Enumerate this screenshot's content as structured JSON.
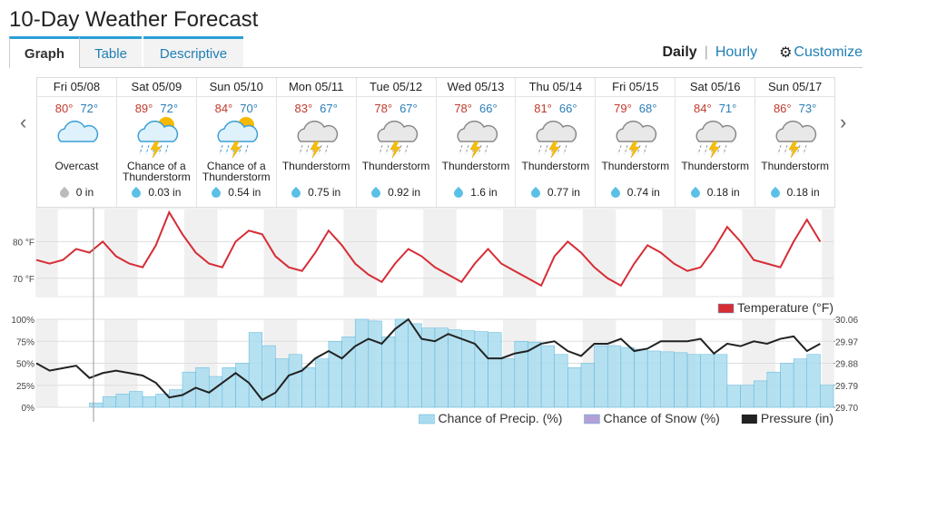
{
  "header": {
    "title": "10-Day Weather Forecast"
  },
  "tabs": [
    "Graph",
    "Table",
    "Descriptive"
  ],
  "views": [
    "Daily",
    "Hourly"
  ],
  "customize": "Customize",
  "days": [
    {
      "date": "Fri 05/08",
      "high": "80°",
      "low": "72°",
      "condition": "Overcast",
      "precip": "0 in"
    },
    {
      "date": "Sat 05/09",
      "high": "89°",
      "low": "72°",
      "condition": "Chance of a Thunderstorm",
      "precip": "0.03 in"
    },
    {
      "date": "Sun 05/10",
      "high": "84°",
      "low": "70°",
      "condition": "Chance of a Thunderstorm",
      "precip": "0.54 in"
    },
    {
      "date": "Mon 05/11",
      "high": "83°",
      "low": "67°",
      "condition": "Thunderstorm",
      "precip": "0.75 in"
    },
    {
      "date": "Tue 05/12",
      "high": "78°",
      "low": "67°",
      "condition": "Thunderstorm",
      "precip": "0.92 in"
    },
    {
      "date": "Wed 05/13",
      "high": "78°",
      "low": "66°",
      "condition": "Thunderstorm",
      "precip": "1.6 in"
    },
    {
      "date": "Thu 05/14",
      "high": "81°",
      "low": "66°",
      "condition": "Thunderstorm",
      "precip": "0.77 in"
    },
    {
      "date": "Fri 05/15",
      "high": "79°",
      "low": "68°",
      "condition": "Thunderstorm",
      "precip": "0.74 in"
    },
    {
      "date": "Sat 05/16",
      "high": "84°",
      "low": "71°",
      "condition": "Thunderstorm",
      "precip": "0.18 in"
    },
    {
      "date": "Sun 05/17",
      "high": "86°",
      "low": "73°",
      "condition": "Thunderstorm",
      "precip": "0.18 in"
    }
  ],
  "chart_data": [
    {
      "type": "line",
      "x": [
        0,
        4,
        8,
        12,
        16,
        20,
        24,
        28,
        32,
        36,
        40,
        44,
        48,
        52,
        56,
        60,
        64,
        68,
        72,
        76,
        80,
        84,
        88,
        92,
        96,
        100,
        104,
        108,
        112,
        116,
        120,
        124,
        128,
        132,
        136,
        140,
        144,
        148,
        152,
        156,
        160,
        164,
        168,
        172,
        176,
        180,
        184,
        188,
        192,
        196,
        200,
        204,
        208,
        212,
        216,
        220,
        224,
        228,
        232,
        236
      ],
      "series": [
        {
          "name": "Temperature (°F)",
          "color": "#d62d35",
          "values": [
            75,
            74,
            75,
            78,
            77,
            80,
            76,
            74,
            73,
            79,
            88,
            82,
            77,
            74,
            73,
            80,
            83,
            82,
            76,
            73,
            72,
            77,
            83,
            79,
            74,
            71,
            69,
            74,
            78,
            76,
            73,
            71,
            69,
            74,
            78,
            74,
            72,
            70,
            68,
            76,
            80,
            77,
            73,
            70,
            68,
            74,
            79,
            77,
            74,
            72,
            73,
            78,
            84,
            80,
            75,
            74,
            73,
            80,
            86,
            80
          ]
        }
      ],
      "xlim": [
        0,
        240
      ],
      "ylim": [
        65,
        89
      ],
      "yticks": [
        {
          "value": 70,
          "label": "70 °F"
        },
        {
          "value": 80,
          "label": "80 °F"
        }
      ],
      "grid": true
    },
    {
      "type": "area",
      "x": [
        0,
        4,
        8,
        12,
        16,
        20,
        24,
        28,
        32,
        36,
        40,
        44,
        48,
        52,
        56,
        60,
        64,
        68,
        72,
        76,
        80,
        84,
        88,
        92,
        96,
        100,
        104,
        108,
        112,
        116,
        120,
        124,
        128,
        132,
        136,
        140,
        144,
        148,
        152,
        156,
        160,
        164,
        168,
        172,
        176,
        180,
        184,
        188,
        192,
        196,
        200,
        204,
        208,
        212,
        216,
        220,
        224,
        228,
        232,
        236
      ],
      "series": [
        {
          "name": "Chance of Precip. (%)",
          "color": "#a9dcef",
          "values": [
            0,
            0,
            0,
            0,
            5,
            12,
            15,
            18,
            12,
            15,
            20,
            40,
            45,
            35,
            45,
            50,
            85,
            70,
            55,
            60,
            45,
            55,
            75,
            80,
            100,
            98,
            80,
            100,
            95,
            90,
            90,
            88,
            87,
            86,
            85,
            55,
            75,
            74,
            70,
            60,
            45,
            50,
            70,
            70,
            68,
            66,
            64,
            63,
            62,
            60,
            60,
            60,
            25,
            25,
            30,
            40,
            50,
            55,
            60,
            25
          ]
        },
        {
          "name": "Chance of Snow (%)",
          "color": "#b49fd6",
          "values": [
            0,
            0,
            0,
            0,
            0,
            0,
            0,
            0,
            0,
            0,
            0,
            0,
            0,
            0,
            0,
            0,
            0,
            0,
            0,
            0,
            0,
            0,
            0,
            0,
            0,
            0,
            0,
            0,
            0,
            0,
            0,
            0,
            0,
            0,
            0,
            0,
            0,
            0,
            0,
            0,
            0,
            0,
            0,
            0,
            0,
            0,
            0,
            0,
            0,
            0,
            0,
            0,
            0,
            0,
            0,
            0,
            0,
            0,
            0,
            0
          ]
        },
        {
          "name": "Pressure (in)",
          "color": "#222222",
          "axis": "y2",
          "values": [
            29.88,
            29.85,
            29.86,
            29.87,
            29.82,
            29.84,
            29.85,
            29.84,
            29.83,
            29.8,
            29.74,
            29.75,
            29.78,
            29.76,
            29.8,
            29.84,
            29.8,
            29.73,
            29.76,
            29.83,
            29.85,
            29.9,
            29.93,
            29.9,
            29.95,
            29.98,
            29.96,
            30.02,
            30.06,
            29.98,
            29.97,
            30,
            29.98,
            29.96,
            29.9,
            29.9,
            29.92,
            29.93,
            29.96,
            29.97,
            29.93,
            29.91,
            29.96,
            29.96,
            29.98,
            29.93,
            29.94,
            29.97,
            29.97,
            29.97,
            29.98,
            29.92,
            29.96,
            29.95,
            29.97,
            29.96,
            29.98,
            29.99,
            29.93,
            29.96
          ]
        }
      ],
      "xlim": [
        0,
        240
      ],
      "ylim": [
        0,
        100
      ],
      "yticks": [
        {
          "value": 0,
          "label": "0%"
        },
        {
          "value": 25,
          "label": "25%"
        },
        {
          "value": 50,
          "label": "50%"
        },
        {
          "value": 75,
          "label": "75%"
        },
        {
          "value": 100,
          "label": "100%"
        }
      ],
      "y2lim": [
        29.7,
        30.06
      ],
      "y2ticks": [
        {
          "value": 29.7,
          "label": "29.70"
        },
        29.79,
        29.88,
        29.97,
        30.06
      ],
      "grid": true
    }
  ]
}
